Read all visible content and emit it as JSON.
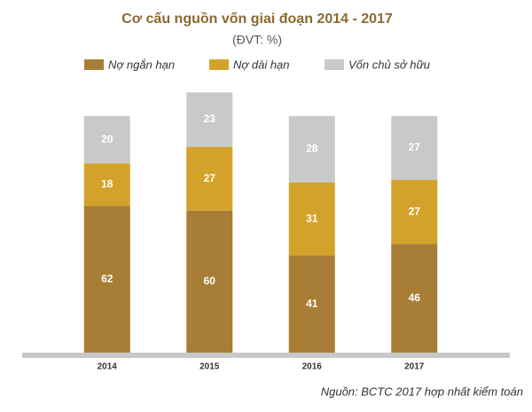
{
  "chart_data": {
    "type": "stacked_bar",
    "title": "Cơ cấu nguồn vốn giai đoạn 2014 - 2017",
    "subtitle": "(ĐVT: %)",
    "categories": [
      "2014",
      "2015",
      "2016",
      "2017"
    ],
    "series": [
      {
        "name": "Nợ ngắn hạn",
        "color": "#a87d36",
        "values": [
          62,
          60,
          41,
          46
        ]
      },
      {
        "name": "Nợ dài hạn",
        "color": "#d3a22b",
        "values": [
          18,
          27,
          31,
          27
        ]
      },
      {
        "name": "Vốn chủ sở hữu",
        "color": "#c9c9c9",
        "values": [
          20,
          23,
          28,
          27
        ]
      }
    ],
    "source": "Nguồn: BCTC 2017 hợp nhất kiểm toán"
  }
}
